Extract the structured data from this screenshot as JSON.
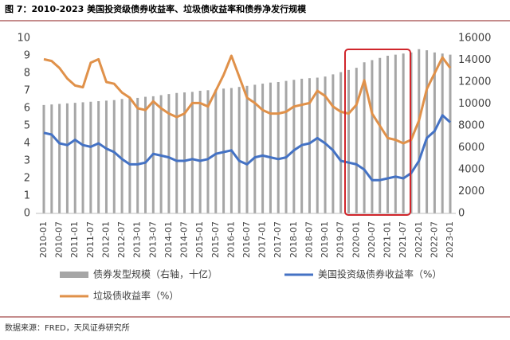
{
  "chart_data": {
    "type": "bar_line",
    "title": "图 7：2010-2023 美国投资级债券收益率、垃圾债收益率和债券净发行规模",
    "source": "数据来源：FRED，天风证券研究所",
    "categories": [
      "2010-01",
      null,
      "2010-07",
      null,
      "2011-01",
      null,
      "2011-07",
      null,
      "2012-01",
      null,
      "2012-07",
      null,
      "2013-01",
      null,
      "2013-07",
      null,
      "2014-01",
      null,
      "2014-07",
      null,
      "2015-01",
      null,
      "2015-07",
      null,
      "2016-01",
      null,
      "2016-07",
      null,
      "2017-01",
      null,
      "2017-07",
      null,
      "2018-01",
      null,
      "2018-07",
      null,
      "2019-01",
      null,
      "2019-07",
      null,
      "2020-01",
      null,
      "2020-07",
      null,
      "2021-01",
      null,
      "2021-07",
      null,
      "2022-01",
      null,
      "2022-07",
      null,
      "2023-01"
    ],
    "series": [
      {
        "name": "债券发型规模（右轴，十亿）",
        "type": "bar",
        "axis": "y2",
        "color": "#a6a6a6",
        "values": [
          9900,
          9950,
          10000,
          10050,
          10100,
          10150,
          10200,
          10250,
          10300,
          10350,
          10450,
          10500,
          10550,
          10650,
          10700,
          10800,
          10900,
          11000,
          11050,
          11100,
          11200,
          11250,
          11300,
          11400,
          11450,
          11550,
          11650,
          11750,
          11850,
          11950,
          12000,
          12100,
          12200,
          12300,
          12350,
          12400,
          12500,
          12700,
          12900,
          13100,
          13300,
          13800,
          14000,
          14200,
          14400,
          14500,
          14600,
          14700,
          15000,
          14900,
          14700,
          14600,
          14500
        ]
      },
      {
        "name": "美国投资级债券收益率（%）",
        "type": "line",
        "color": "#4472c4",
        "values": [
          4.6,
          4.5,
          4.0,
          3.9,
          4.2,
          3.9,
          3.8,
          4.0,
          3.7,
          3.5,
          3.1,
          2.8,
          2.8,
          2.9,
          3.4,
          3.3,
          3.2,
          3.0,
          3.0,
          3.1,
          3.0,
          3.1,
          3.4,
          3.5,
          3.6,
          3.0,
          2.8,
          3.2,
          3.3,
          3.2,
          3.1,
          3.2,
          3.6,
          3.9,
          4.0,
          4.3,
          4.0,
          3.6,
          3.0,
          2.9,
          2.8,
          2.5,
          1.9,
          1.9,
          2.0,
          2.1,
          2.0,
          2.3,
          3.0,
          4.3,
          4.7,
          5.6,
          5.2
        ]
      },
      {
        "name": "垃圾债收益率（%）",
        "type": "line",
        "color": "#e0914a",
        "values": [
          8.8,
          8.7,
          8.3,
          7.7,
          7.3,
          7.2,
          8.6,
          8.8,
          7.5,
          7.4,
          6.9,
          6.6,
          6.0,
          5.9,
          6.4,
          6.0,
          5.7,
          5.5,
          5.7,
          6.3,
          6.3,
          6.1,
          7.0,
          7.9,
          9.0,
          7.8,
          6.6,
          6.3,
          5.9,
          5.7,
          5.7,
          5.8,
          6.1,
          6.2,
          6.3,
          7.0,
          6.7,
          6.1,
          5.8,
          5.7,
          6.2,
          7.6,
          5.7,
          5.0,
          4.3,
          4.2,
          4.0,
          4.2,
          5.3,
          7.1,
          8.0,
          8.9,
          8.3
        ]
      }
    ],
    "ylim": [
      0,
      10
    ],
    "yticks": [
      0,
      1,
      2,
      3,
      4,
      5,
      6,
      7,
      8,
      9,
      10
    ],
    "y2lim": [
      0,
      16000
    ],
    "y2ticks": [
      0,
      2000,
      4000,
      6000,
      8000,
      10000,
      12000,
      14000,
      16000
    ]
  }
}
